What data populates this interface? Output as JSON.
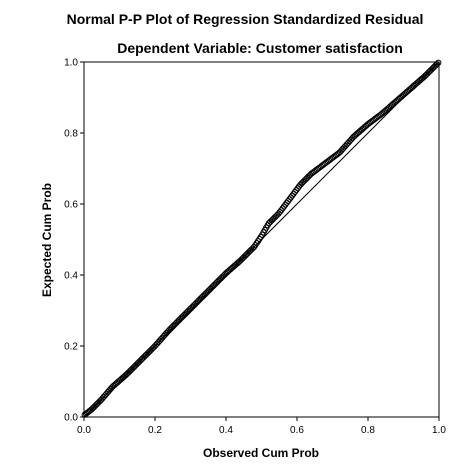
{
  "chart_data": {
    "type": "scatter",
    "title": "Normal P-P Plot of Regression Standardized Residual",
    "subtitle": "Dependent Variable: Customer satisfaction",
    "xlabel": "Observed Cum Prob",
    "ylabel": "Expected Cum Prob",
    "xlim": [
      0,
      1
    ],
    "ylim": [
      0,
      1
    ],
    "xticks": [
      "0.0",
      "0.2",
      "0.4",
      "0.6",
      "0.8",
      "1.0"
    ],
    "yticks": [
      "0.0",
      "0.2",
      "0.4",
      "0.6",
      "0.8",
      "1.0"
    ],
    "reference_line": [
      [
        0,
        0
      ],
      [
        1,
        1
      ]
    ],
    "grid": false,
    "legend": "none",
    "marker": "open-circle",
    "colors": {
      "points": "#000000",
      "line": "#000000",
      "background": "#ffffff"
    },
    "curve": {
      "x": [
        0,
        0.02,
        0.05,
        0.08,
        0.12,
        0.16,
        0.2,
        0.24,
        0.28,
        0.32,
        0.36,
        0.4,
        0.44,
        0.48,
        0.5,
        0.52,
        0.55,
        0.58,
        0.61,
        0.64,
        0.68,
        0.72,
        0.76,
        0.8,
        0.84,
        0.88,
        0.92,
        0.96,
        1.0
      ],
      "y": [
        0.005,
        0.02,
        0.05,
        0.085,
        0.12,
        0.16,
        0.2,
        0.245,
        0.285,
        0.325,
        0.365,
        0.405,
        0.44,
        0.48,
        0.51,
        0.545,
        0.575,
        0.615,
        0.655,
        0.685,
        0.715,
        0.745,
        0.79,
        0.825,
        0.855,
        0.89,
        0.925,
        0.96,
        1.0
      ]
    },
    "n_points": 260
  }
}
